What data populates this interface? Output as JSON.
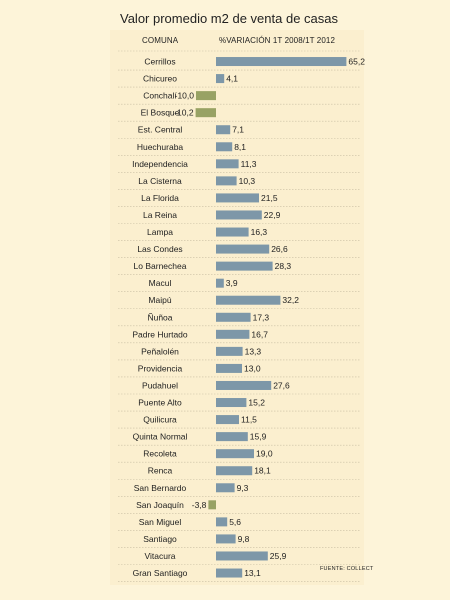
{
  "title": "Valor promedio m2 de venta de casas",
  "headers": {
    "comuna": "COMUNA",
    "variacion": "%VARIACIÓN 1T 2008/1T 2012"
  },
  "source": "FUENTE: COLLECT",
  "colors": {
    "positive": "#7d97a8",
    "negative": "#98a264",
    "background": "#fdf4d9",
    "panel": "#fbefcf"
  },
  "chart_data": {
    "type": "bar",
    "orientation": "horizontal",
    "title": "Valor promedio m2 de venta de casas",
    "xlabel": "%VARIACIÓN 1T 2008/1T 2012",
    "ylabel": "COMUNA",
    "xlim": [
      -10.2,
      65.2
    ],
    "categories": [
      "Cerrillos",
      "Chicureo",
      "Conchalí",
      "El Bosque",
      "Est. Central",
      "Huechuraba",
      "Independencia",
      "La Cisterna",
      "La Florida",
      "La Reina",
      "Lampa",
      "Las Condes",
      "Lo Barnechea",
      "Macul",
      "Maipú",
      "Ñuñoa",
      "Padre Hurtado",
      "Peñalolén",
      "Providencia",
      "Pudahuel",
      "Puente Alto",
      "Quilicura",
      "Quinta Normal",
      "Recoleta",
      "Renca",
      "San Bernardo",
      "San Joaquín",
      "San Miguel",
      "Santiago",
      "Vitacura",
      "Gran Santiago"
    ],
    "values": [
      65.2,
      4.1,
      -10.0,
      -10.2,
      7.1,
      8.1,
      11.3,
      10.3,
      21.5,
      22.9,
      16.3,
      26.6,
      28.3,
      3.9,
      32.2,
      17.3,
      16.7,
      13.3,
      13.0,
      27.6,
      15.2,
      11.5,
      15.9,
      19.0,
      18.1,
      9.3,
      -3.8,
      5.6,
      9.8,
      25.9,
      13.1
    ],
    "value_labels": [
      "65,2",
      "4,1",
      "-10,0",
      "-10,2",
      "7,1",
      "8,1",
      "11,3",
      "10,3",
      "21,5",
      "22,9",
      "16,3",
      "26,6",
      "28,3",
      "3,9",
      "32,2",
      "17,3",
      "16,7",
      "13,3",
      "13,0",
      "27,6",
      "15,2",
      "11,5",
      "15,9",
      "19,0",
      "18,1",
      "9,3",
      "-3,8",
      "5,6",
      "9,8",
      "25,9",
      "13,1"
    ],
    "grid": false,
    "legend": false
  }
}
